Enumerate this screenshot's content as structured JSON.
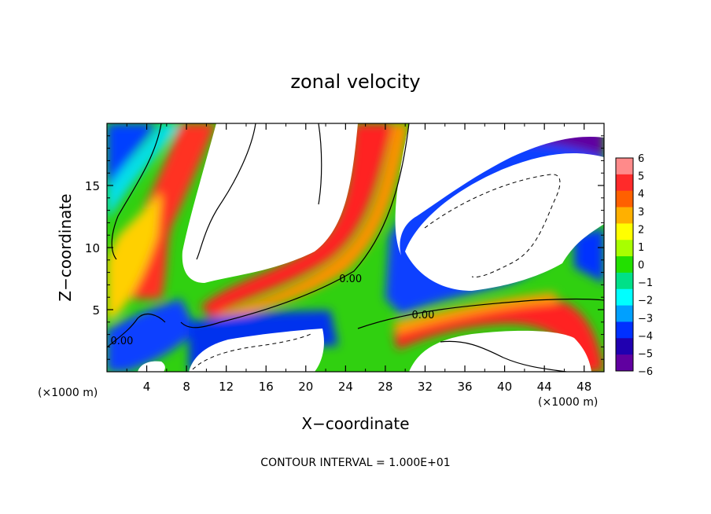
{
  "chart_data": {
    "type": "heatmap",
    "title": "zonal velocity",
    "xlabel": "X−coordinate",
    "ylabel": "Z−coordinate",
    "x_unit_label": "(×1000 m)",
    "y_unit_label": "(×1000 m)",
    "xlim": [
      0,
      50
    ],
    "ylim": [
      0,
      20
    ],
    "x_ticks": [
      4,
      8,
      12,
      16,
      20,
      24,
      28,
      32,
      36,
      40,
      44,
      48
    ],
    "y_ticks": [
      5,
      10,
      15
    ],
    "contour_labels": [
      {
        "text": "0.00",
        "x": 1.5,
        "z": 2.2
      },
      {
        "text": "0.00",
        "x": 24.5,
        "z": 7.2
      },
      {
        "text": "0.00",
        "x": 31.8,
        "z": 4.3
      }
    ],
    "colorbar": {
      "ticks": [
        "6",
        "5",
        "4",
        "3",
        "2",
        "1",
        "0",
        "−1",
        "−2",
        "−3",
        "−4",
        "−5",
        "−6"
      ],
      "colors": [
        "#ff8a8a",
        "#ff2a2a",
        "#ff6000",
        "#ffb000",
        "#ffff00",
        "#a8ff00",
        "#22e000",
        "#00e088",
        "#00ffff",
        "#00a0ff",
        "#0030ff",
        "#2000b0",
        "#6000a0"
      ]
    },
    "footnote": "CONTOUR INTERVAL = 1.000E+01"
  }
}
